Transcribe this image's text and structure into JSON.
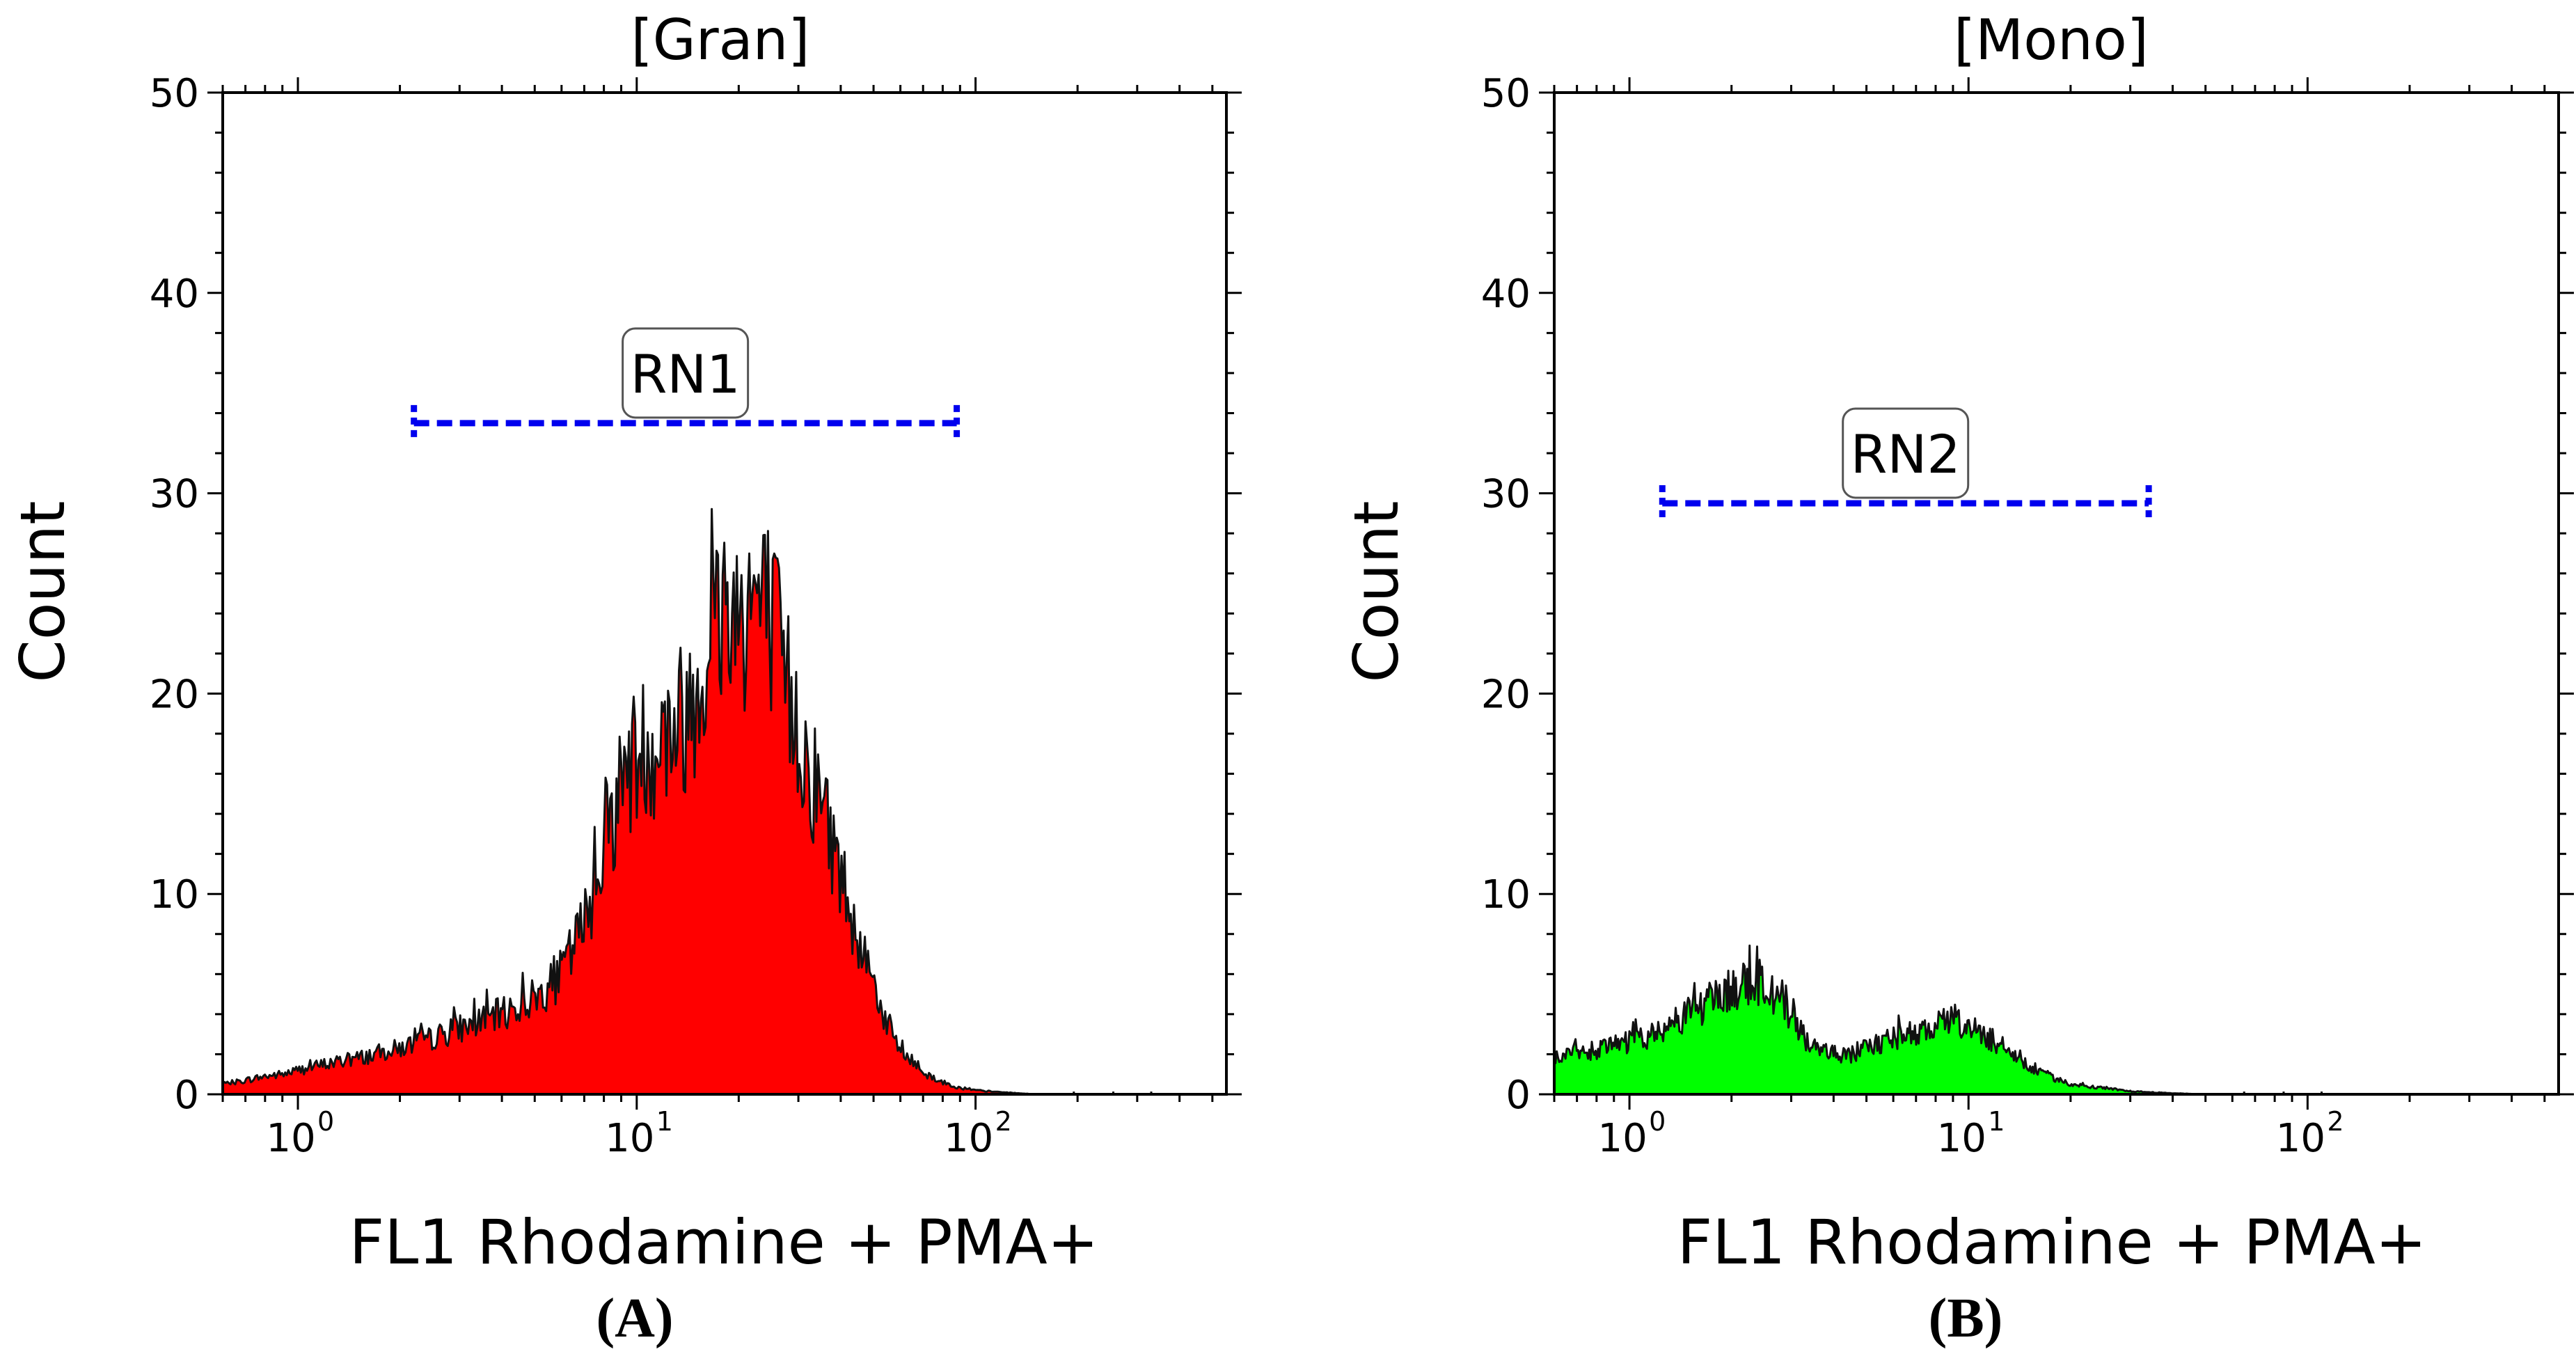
{
  "colors": {
    "axis": "#000000",
    "gate": "#0000ee",
    "outline": "#111111",
    "fill_a": "#ff0000",
    "fill_b": "#00ff00"
  },
  "chart_data": [
    {
      "type": "area",
      "panel_label": "(A)",
      "title": "[Gran]",
      "xlabel": "FL1 Rhodamine + PMA+",
      "ylabel": "Count",
      "xscale": "log",
      "xlim": [
        0.6,
        550
      ],
      "ylim": [
        0,
        50
      ],
      "yticks": [
        0,
        10,
        20,
        30,
        40,
        50
      ],
      "ytick_labels": [
        "0",
        "10",
        "20",
        "30",
        "40",
        "50"
      ],
      "xticks": [
        1,
        10,
        100
      ],
      "xtick_bases": [
        "10",
        "10",
        "10"
      ],
      "xtick_exps": [
        "0",
        "1",
        "2"
      ],
      "fill_color": "#ff0000",
      "series": [
        {
          "name": "Gran",
          "x": [
            0.6,
            0.7,
            0.8,
            0.9,
            1.0,
            1.2,
            1.5,
            2.0,
            2.5,
            3.0,
            4.0,
            5.0,
            6.0,
            7.0,
            8.0,
            9.0,
            10.0,
            11.0,
            12.0,
            14.0,
            16.0,
            18.0,
            20.0,
            22.0,
            25.0,
            28.0,
            32.0,
            36.0,
            40.0,
            45.0,
            50.0,
            55.0,
            60.0,
            70.0,
            80.0,
            90.0,
            100.0,
            120.0,
            150.0
          ],
          "y": [
            0.5,
            0.7,
            0.9,
            1.0,
            1.2,
            1.5,
            1.8,
            2.3,
            2.8,
            3.3,
            4.0,
            4.8,
            6.0,
            8.5,
            12.5,
            15.5,
            17.0,
            17.5,
            17.8,
            19.0,
            22.0,
            24.5,
            24.0,
            25.0,
            23.5,
            20.0,
            16.5,
            14.0,
            11.0,
            8.0,
            5.5,
            3.5,
            2.2,
            1.1,
            0.6,
            0.3,
            0.2,
            0.1,
            0.0
          ]
        }
      ],
      "gate": {
        "label": "RN1",
        "x_start": 2.2,
        "x_end": 88,
        "y": 33.5
      }
    },
    {
      "type": "area",
      "panel_label": "(B)",
      "title": "[Mono]",
      "xlabel": "FL1 Rhodamine + PMA+",
      "ylabel": "Count",
      "xscale": "log",
      "xlim": [
        0.6,
        550
      ],
      "ylim": [
        0,
        50
      ],
      "yticks": [
        0,
        10,
        20,
        30,
        40,
        50
      ],
      "ytick_labels": [
        "0",
        "10",
        "20",
        "30",
        "40",
        "50"
      ],
      "xticks": [
        1,
        10,
        100
      ],
      "xtick_bases": [
        "10",
        "10",
        "10"
      ],
      "xtick_exps": [
        "0",
        "1",
        "2"
      ],
      "fill_color": "#00ff00",
      "series": [
        {
          "name": "Mono",
          "x": [
            0.6,
            0.7,
            0.8,
            0.9,
            1.0,
            1.2,
            1.4,
            1.6,
            1.8,
            2.0,
            2.2,
            2.4,
            2.6,
            2.8,
            3.0,
            3.3,
            3.6,
            4.0,
            4.5,
            5.0,
            6.0,
            7.0,
            8.0,
            9.0,
            10.0,
            11.0,
            12.0,
            14.0,
            16.0,
            18.0,
            20.0,
            25.0,
            30.0,
            40.0,
            50.0
          ],
          "y": [
            1.8,
            2.0,
            2.2,
            2.4,
            2.6,
            3.0,
            3.8,
            4.3,
            4.8,
            5.2,
            5.5,
            5.6,
            5.2,
            4.6,
            3.8,
            2.8,
            2.3,
            2.0,
            2.0,
            2.3,
            2.8,
            3.1,
            3.4,
            3.6,
            3.3,
            3.0,
            2.6,
            1.8,
            1.2,
            0.8,
            0.5,
            0.3,
            0.15,
            0.05,
            0.0
          ]
        }
      ],
      "gate": {
        "label": "RN2",
        "x_start": 1.25,
        "x_end": 34,
        "y": 29.5
      }
    }
  ]
}
